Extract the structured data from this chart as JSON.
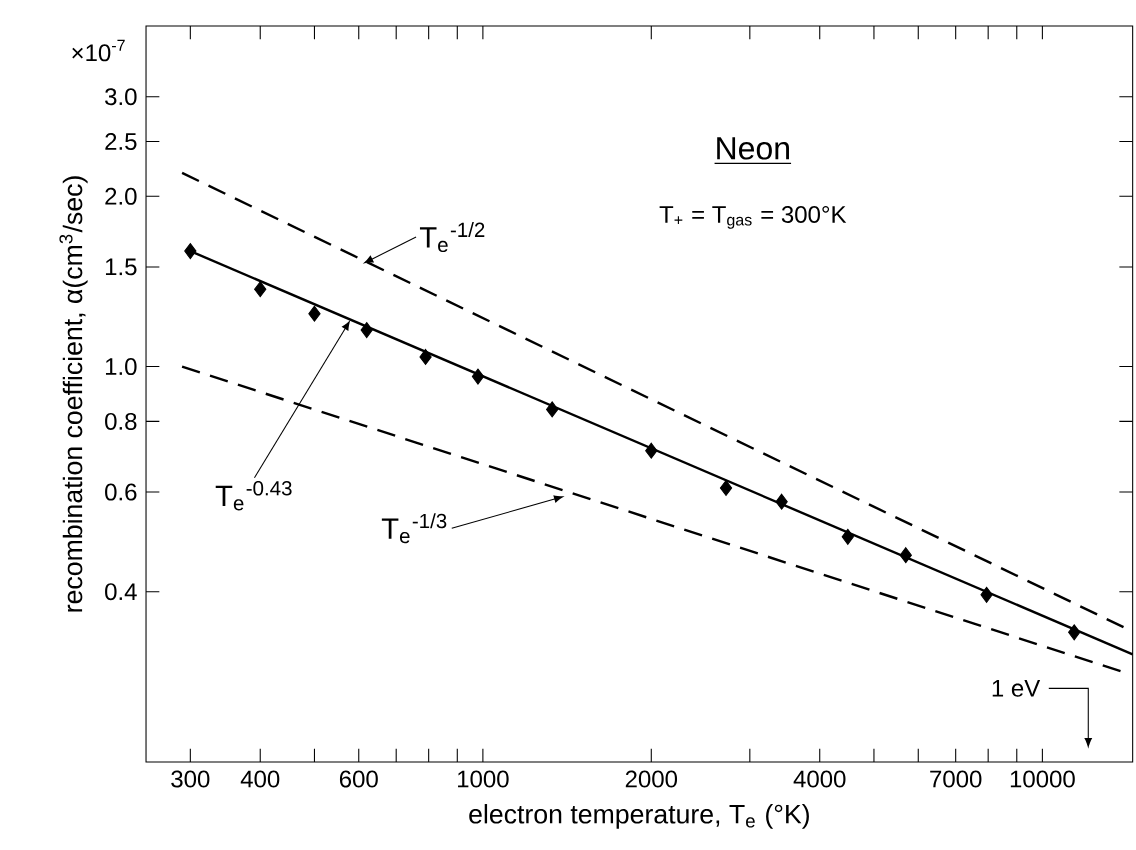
{
  "chart_data": {
    "type": "line",
    "log": "xy",
    "xlabel": "electron temperature, T$_{e}$ (°K)",
    "ylabel": "recombination coefficient, α(cm$^{3}$/sec)",
    "xlim": [
      250,
      14500
    ],
    "ylim": [
      0.2,
      4.0
    ],
    "xticks": [
      300,
      400,
      {
        "value": 500,
        "label": null
      },
      600,
      {
        "value": 700,
        "label": null
      },
      {
        "value": 800,
        "label": null
      },
      {
        "value": 900,
        "label": null
      },
      1000,
      {
        "value": 3000,
        "label": null
      },
      2000,
      4000,
      {
        "value": 5000,
        "label": null
      },
      {
        "value": 6000,
        "label": null
      },
      7000,
      {
        "value": 8000,
        "label": null
      },
      {
        "value": 9000,
        "label": null
      },
      10000
    ],
    "yticks": [
      0.4,
      0.6,
      0.8,
      {
        "value": 1,
        "label": "1.0"
      },
      1.5,
      {
        "value": 2,
        "label": "2.0"
      },
      2.5,
      {
        "value": 3,
        "label": "3.0"
      }
    ],
    "annotations": [
      "×10$^{-7}$",
      "Neon",
      "T$_{+}$ = T$_{gas}$ = 300°K",
      "1 eV",
      {
        "text": "T$_{e}$$^{-1/2}$",
        "x": 610,
        "y": 1.52
      },
      {
        "text": "T$_{e}$$^{-0.43}$",
        "x": 580,
        "y": 1.21
      },
      {
        "text": "T$_{e}$$^{-1/3}$",
        "x": 1400,
        "y": 0.59
      }
    ],
    "series": [
      {
        "line_style": "dashed",
        "marker": "none",
        "color": "#000000",
        "x": [
          290,
          14500
        ],
        "values": [
          2.2,
          0.34
        ]
      },
      {
        "line_style": "solid",
        "marker": "none",
        "color": "#000000",
        "x": [
          300,
          14500
        ],
        "values": [
          1.6,
          0.31
        ]
      },
      {
        "line_style": "dashed",
        "marker": "none",
        "color": "#000000",
        "x": [
          290,
          14000
        ],
        "values": [
          1.0,
          0.288
        ]
      },
      {
        "type": "scatter",
        "marker": "diamond",
        "color": "#000000",
        "x": [
          300,
          400,
          500,
          620,
          790,
          980,
          1330,
          2000,
          2720,
          3420,
          4490,
          5700,
          7950,
          11400
        ],
        "values": [
          1.6,
          1.37,
          1.24,
          1.16,
          1.04,
          0.96,
          0.84,
          0.71,
          0.61,
          0.577,
          0.5,
          0.464,
          0.395,
          0.339
        ]
      }
    ]
  }
}
